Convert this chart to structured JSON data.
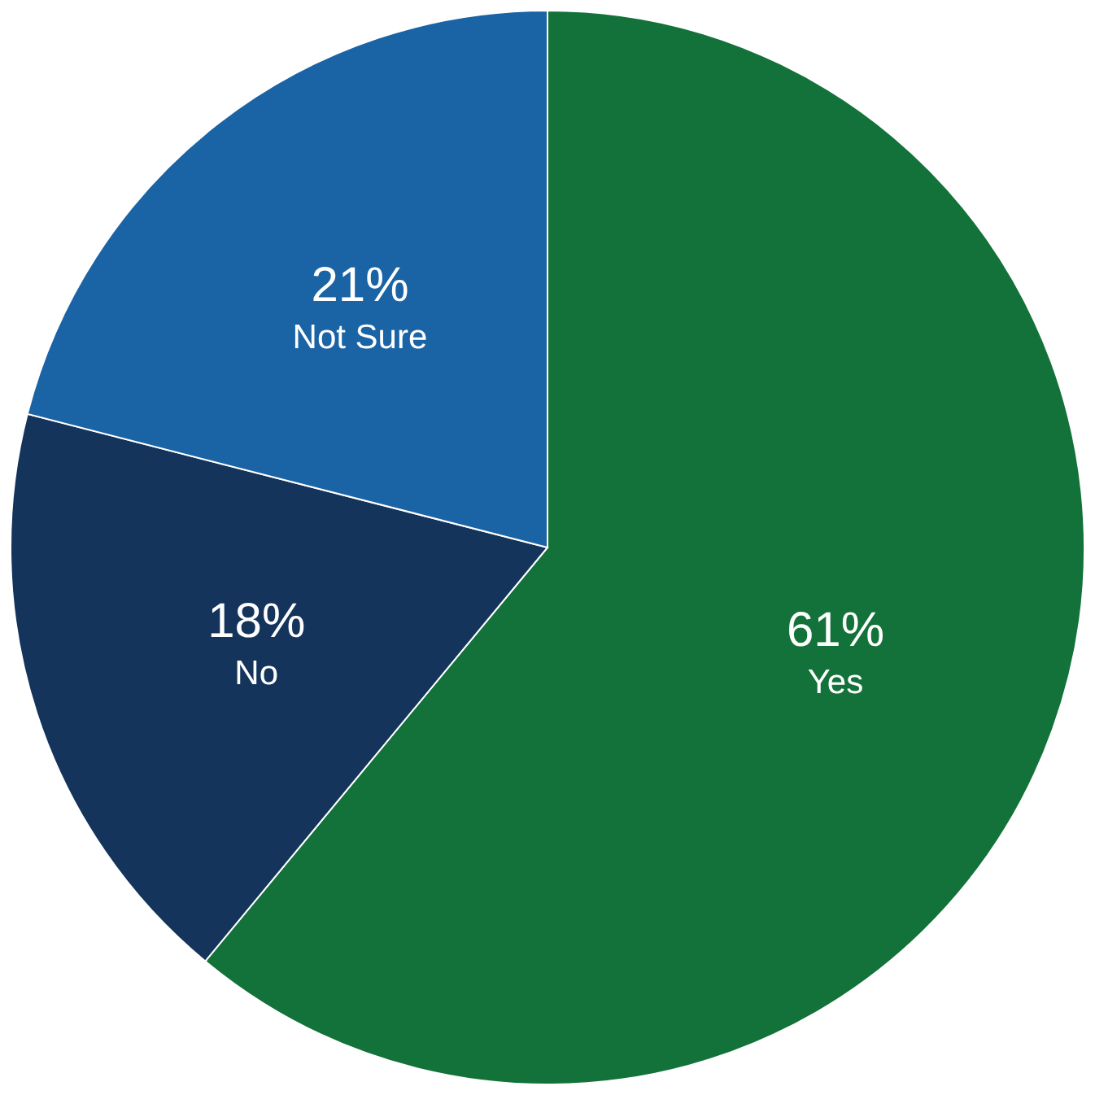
{
  "chart_data": {
    "type": "pie",
    "categories": [
      "Yes",
      "No",
      "Not Sure"
    ],
    "values": [
      61,
      18,
      21
    ],
    "colors": [
      "#137239",
      "#14345c",
      "#1a63a5"
    ],
    "value_labels": [
      "61%",
      "18%",
      "21%"
    ],
    "legend": false
  }
}
